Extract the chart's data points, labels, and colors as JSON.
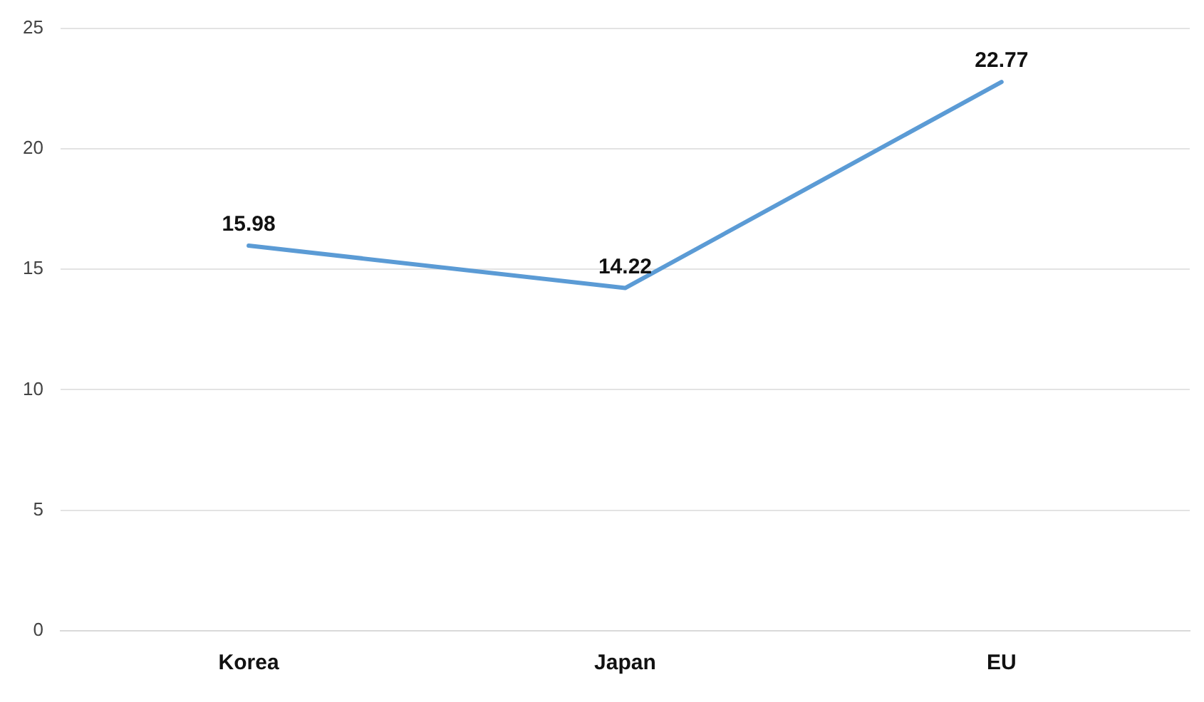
{
  "chart_data": {
    "type": "line",
    "categories": [
      "Korea",
      "Japan",
      "EU"
    ],
    "series": [
      {
        "color": "#5b9bd5",
        "values": [
          15.98,
          14.22,
          22.77
        ]
      }
    ],
    "ylim": [
      0,
      25
    ],
    "yticks": [
      0,
      5,
      10,
      15,
      20,
      25
    ],
    "grid": "y",
    "data_labels": true,
    "marker": "none",
    "line_style": "solid"
  }
}
